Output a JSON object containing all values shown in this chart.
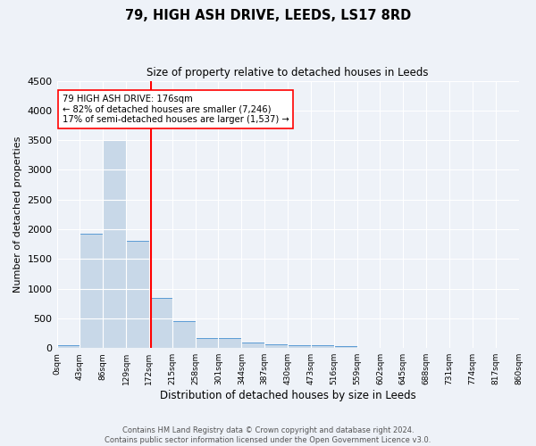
{
  "title": "79, HIGH ASH DRIVE, LEEDS, LS17 8RD",
  "subtitle": "Size of property relative to detached houses in Leeds",
  "xlabel": "Distribution of detached houses by size in Leeds",
  "ylabel": "Number of detached properties",
  "bin_edges": [
    0,
    43,
    86,
    129,
    172,
    215,
    258,
    301,
    344,
    387,
    430,
    473,
    516,
    559,
    602,
    645,
    688,
    731,
    774,
    817,
    860
  ],
  "bar_heights": [
    50,
    1920,
    3500,
    1800,
    850,
    450,
    175,
    165,
    100,
    60,
    55,
    55,
    35,
    0,
    0,
    0,
    0,
    0,
    0,
    0
  ],
  "bar_color": "#c8d8e8",
  "bar_edge_color": "#5b9bd5",
  "property_size": 176,
  "vline_color": "red",
  "annotation_line1": "79 HIGH ASH DRIVE: 176sqm",
  "annotation_line2": "← 82% of detached houses are smaller (7,246)",
  "annotation_line3": "17% of semi-detached houses are larger (1,537) →",
  "annotation_box_color": "white",
  "annotation_box_edge": "red",
  "ylim": [
    0,
    4500
  ],
  "yticks": [
    0,
    500,
    1000,
    1500,
    2000,
    2500,
    3000,
    3500,
    4000,
    4500
  ],
  "tick_labels": [
    "0sqm",
    "43sqm",
    "86sqm",
    "129sqm",
    "172sqm",
    "215sqm",
    "258sqm",
    "301sqm",
    "344sqm",
    "387sqm",
    "430sqm",
    "473sqm",
    "516sqm",
    "559sqm",
    "602sqm",
    "645sqm",
    "688sqm",
    "731sqm",
    "774sqm",
    "817sqm",
    "860sqm"
  ],
  "footer_text": "Contains HM Land Registry data © Crown copyright and database right 2024.\nContains public sector information licensed under the Open Government Licence v3.0.",
  "bg_color": "#eef2f8",
  "grid_color": "white"
}
